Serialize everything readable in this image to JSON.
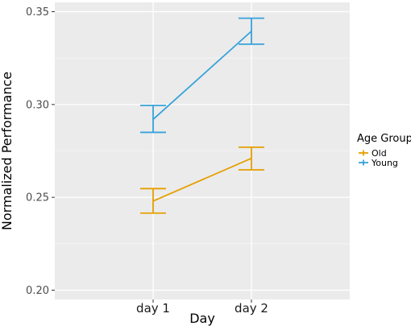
{
  "chart_data": {
    "type": "line",
    "xlabel": "Day",
    "ylabel": "Normalized Performance",
    "categories": [
      "day 1",
      "day 2"
    ],
    "ylim": [
      0.195,
      0.355
    ],
    "yticks": [
      0.2,
      0.25,
      0.3,
      0.35
    ],
    "ytick_labels": [
      "0.20",
      "0.25",
      "0.30",
      "0.35"
    ],
    "grid": true,
    "legend": {
      "title": "Age Group",
      "position": "right"
    },
    "series": [
      {
        "name": "Old",
        "color": "#E69F00",
        "values": [
          0.248,
          0.271
        ],
        "error_low": [
          0.2415,
          0.2648
        ],
        "error_high": [
          0.2547,
          0.277
        ]
      },
      {
        "name": "Young",
        "color": "#36A2DB",
        "values": [
          0.292,
          0.3395
        ],
        "error_low": [
          0.285,
          0.3325
        ],
        "error_high": [
          0.2995,
          0.3465
        ]
      }
    ]
  }
}
